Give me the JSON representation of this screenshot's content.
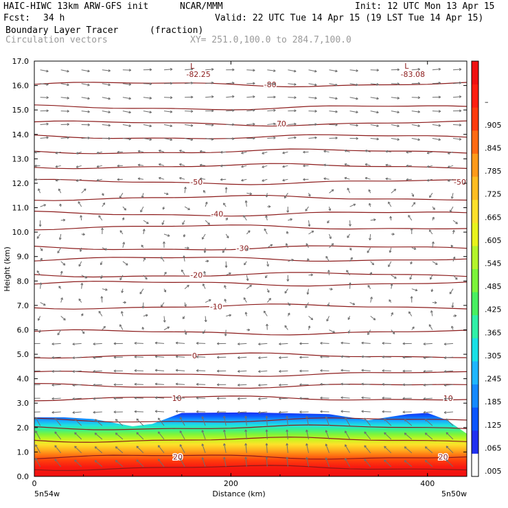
{
  "header": {
    "model": "HAIC-HIWC 13km ARW-GFS init",
    "org": "NCAR/MMM",
    "init": "Init: 12 UTC Mon 13 Apr 15",
    "fcst_label": "Fcst:",
    "fcst_value": "34 h",
    "valid": "Valid: 22 UTC Tue 14 Apr 15 (19 LST Tue 14 Apr 15)",
    "field": "Boundary Layer Tracer",
    "units": "(fraction)",
    "vectors": "Circulation vectors",
    "xsect": "XY= 251.0,100.0 to 284.7,100.0"
  },
  "chart_data": {
    "type": "heatmap",
    "title": "Boundary Layer Tracer",
    "units": "(fraction)",
    "xlabel": "Distance (km)",
    "ylabel": "Height (km)",
    "xlim": [
      0,
      440
    ],
    "ylim": [
      0,
      17
    ],
    "x_ticks": [
      "0",
      "200",
      "400"
    ],
    "x_tick_values": [
      0,
      200,
      400
    ],
    "y_ticks": [
      "0.0",
      "1.0",
      "2.0",
      "3.0",
      "4.0",
      "5.0",
      "6.0",
      "7.0",
      "8.0",
      "9.0",
      "10.0",
      "11.0",
      "12.0",
      "13.0",
      "14.0",
      "15.0",
      "16.0",
      "17.0"
    ],
    "x_endpoint_labels": [
      "5n54w",
      "5n50w"
    ],
    "colorbar": {
      "labels": [
        ".005",
        ".065",
        ".125",
        ".185",
        ".245",
        ".305",
        ".365",
        ".425",
        ".485",
        ".545",
        ".605",
        ".665",
        ".725",
        ".785",
        ".845",
        ".905",
        "–"
      ],
      "colors": [
        "#ffffff",
        "#2030f0",
        "#0b55ff",
        "#1589ff",
        "#1fb6ff",
        "#19e0e6",
        "#2ff0a8",
        "#48f060",
        "#7cf53a",
        "#b4f52a",
        "#e8f31c",
        "#fde02a",
        "#ffbd22",
        "#ff9a1a",
        "#ff6a12",
        "#ff3a0c",
        "#ff1e10",
        "#f01010"
      ]
    },
    "tracer_top_km": [
      [
        0,
        2.42
      ],
      [
        30,
        2.42
      ],
      [
        60,
        2.35
      ],
      [
        100,
        2.05
      ],
      [
        120,
        2.15
      ],
      [
        150,
        2.6
      ],
      [
        220,
        2.62
      ],
      [
        300,
        2.55
      ],
      [
        340,
        2.3
      ],
      [
        380,
        2.55
      ],
      [
        400,
        2.6
      ],
      [
        420,
        2.3
      ],
      [
        440,
        1.75
      ]
    ],
    "isotherms": [
      {
        "label": "-80",
        "y": 16.05,
        "label_x": 240
      },
      {
        "label": "-70",
        "y": 14.45,
        "label_x": 250
      },
      {
        "label": "-50",
        "y": 12.05,
        "label_x": 165,
        "label_x2": 433
      },
      {
        "label": "-40",
        "y": 10.75,
        "label_x": 186
      },
      {
        "label": "-30",
        "y": 9.35,
        "label_x": 212
      },
      {
        "label": "-20",
        "y": 8.25,
        "label_x": 165
      },
      {
        "label": "-10",
        "y": 6.95,
        "label_x": 185
      },
      {
        "label": "0",
        "y": 4.95,
        "label_x": 163,
        "label_x2": 442
      },
      {
        "label": "10",
        "y": 3.2,
        "label_x": 145,
        "label_x2": 421
      },
      {
        "label": "20",
        "y": 0.8,
        "label_x": 146,
        "label_x2": 416
      }
    ],
    "extra_isotherm_levels_km": [
      15.1,
      13.9,
      13.3,
      12.7,
      11.4,
      10.2,
      8.9,
      7.9,
      5.9,
      4.2,
      3.7,
      2.3,
      2.0,
      1.5,
      0.35
    ],
    "lows": [
      {
        "label": "L",
        "value": "-82.25",
        "x": 160,
        "y": 16.75
      },
      {
        "label": "L",
        "value": "-83.08",
        "x": 378,
        "y": 16.75
      }
    ],
    "grid": false
  }
}
